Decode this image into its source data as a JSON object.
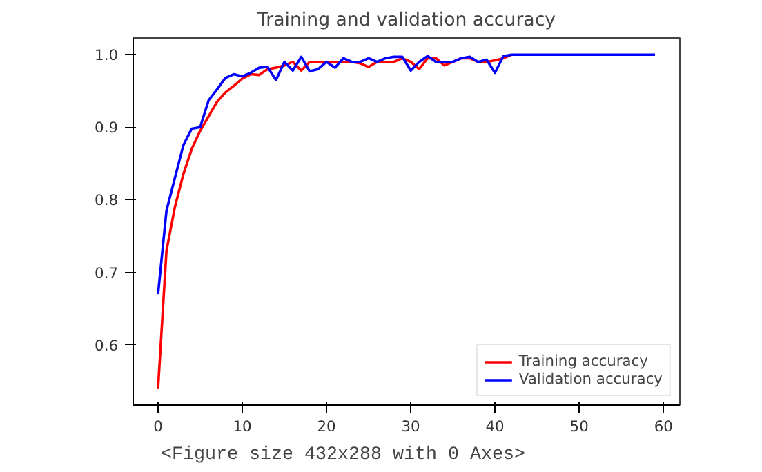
{
  "chart_data": {
    "type": "line",
    "title": "Training and validation accuracy",
    "x": [
      0,
      1,
      2,
      3,
      4,
      5,
      6,
      7,
      8,
      9,
      10,
      11,
      12,
      13,
      14,
      15,
      16,
      17,
      18,
      19,
      20,
      21,
      22,
      23,
      24,
      25,
      26,
      27,
      28,
      29,
      30,
      31,
      32,
      33,
      34,
      35,
      36,
      37,
      38,
      39,
      40,
      41,
      42,
      43,
      44,
      45,
      46,
      47,
      48,
      49,
      50,
      51,
      52,
      53,
      54,
      55,
      56,
      57,
      58,
      59
    ],
    "series": [
      {
        "name": "Training accuracy",
        "color": "#ff0000",
        "values": [
          0.54,
          0.73,
          0.79,
          0.835,
          0.87,
          0.895,
          0.915,
          0.935,
          0.948,
          0.957,
          0.967,
          0.973,
          0.972,
          0.98,
          0.982,
          0.985,
          0.99,
          0.978,
          0.99,
          0.99,
          0.99,
          0.99,
          0.99,
          0.99,
          0.988,
          0.983,
          0.99,
          0.99,
          0.99,
          0.995,
          0.99,
          0.98,
          0.995,
          0.995,
          0.985,
          0.99,
          0.995,
          0.995,
          0.99,
          0.99,
          0.992,
          0.995,
          1.0,
          null,
          null,
          null,
          null,
          null,
          null,
          null,
          null,
          null,
          null,
          null,
          null,
          null,
          null,
          null,
          null,
          null
        ]
      },
      {
        "name": "Validation accuracy",
        "color": "#0000ff",
        "values": [
          0.67,
          0.785,
          0.83,
          0.875,
          0.898,
          0.9,
          0.937,
          0.952,
          0.968,
          0.973,
          0.97,
          0.975,
          0.982,
          0.983,
          0.965,
          0.99,
          0.978,
          0.997,
          0.977,
          0.98,
          0.99,
          0.982,
          0.995,
          0.99,
          0.99,
          0.995,
          0.99,
          0.995,
          0.997,
          0.997,
          0.978,
          0.99,
          0.998,
          0.99,
          0.99,
          0.99,
          0.995,
          0.997,
          0.99,
          0.993,
          0.975,
          0.998,
          1.0,
          1.0,
          1.0,
          1.0,
          1.0,
          1.0,
          1.0,
          1.0,
          1.0,
          1.0,
          1.0,
          1.0,
          1.0,
          1.0,
          1.0,
          1.0,
          1.0,
          1.0
        ]
      }
    ],
    "xlim": [
      -2.95,
      61.95
    ],
    "ylim": [
      0.517,
      1.023
    ],
    "xticks": [
      0,
      10,
      20,
      30,
      40,
      50,
      60
    ],
    "yticks": [
      0.6,
      0.7,
      0.8,
      0.9,
      {
        "value": 1,
        "label": "1.0"
      }
    ],
    "grid": false,
    "legend": "bottom right",
    "line_style": "solid",
    "annotations": [
      "<Figure size 432x288 with 0 Axes>"
    ]
  }
}
